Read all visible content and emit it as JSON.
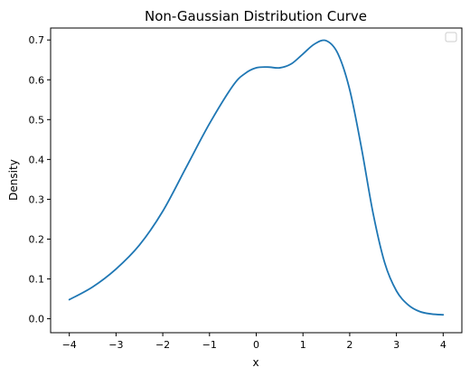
{
  "chart_data": {
    "type": "line",
    "title": "Non-Gaussian Distribution Curve",
    "xlabel": "x",
    "ylabel": "Density",
    "xlim": [
      -4.4,
      4.4
    ],
    "ylim": [
      -0.035,
      0.73
    ],
    "xticks": [
      -4,
      -3,
      -2,
      -1,
      0,
      1,
      2,
      3,
      4
    ],
    "yticks": [
      0.0,
      0.1,
      0.2,
      0.3,
      0.4,
      0.5,
      0.6,
      0.7
    ],
    "xtick_labels": [
      "−4",
      "−3",
      "−2",
      "−1",
      "0",
      "1",
      "2",
      "3",
      "4"
    ],
    "ytick_labels": [
      "0.0",
      "0.1",
      "0.2",
      "0.3",
      "0.4",
      "0.5",
      "0.6",
      "0.7"
    ],
    "grid": false,
    "legend": {
      "placement": "top-right",
      "entries": []
    },
    "series": [
      {
        "color": "#1f77b4",
        "x": [
          -4.0,
          -3.5,
          -3.0,
          -2.5,
          -2.0,
          -1.5,
          -1.0,
          -0.5,
          -0.25,
          0.0,
          0.25,
          0.5,
          0.75,
          1.0,
          1.25,
          1.5,
          1.75,
          2.0,
          2.25,
          2.5,
          2.75,
          3.0,
          3.25,
          3.5,
          3.75,
          4.0
        ],
        "y": [
          0.048,
          0.08,
          0.125,
          0.185,
          0.27,
          0.38,
          0.49,
          0.585,
          0.615,
          0.63,
          0.632,
          0.63,
          0.64,
          0.665,
          0.69,
          0.698,
          0.665,
          0.575,
          0.43,
          0.265,
          0.14,
          0.07,
          0.035,
          0.018,
          0.012,
          0.01
        ]
      }
    ]
  }
}
